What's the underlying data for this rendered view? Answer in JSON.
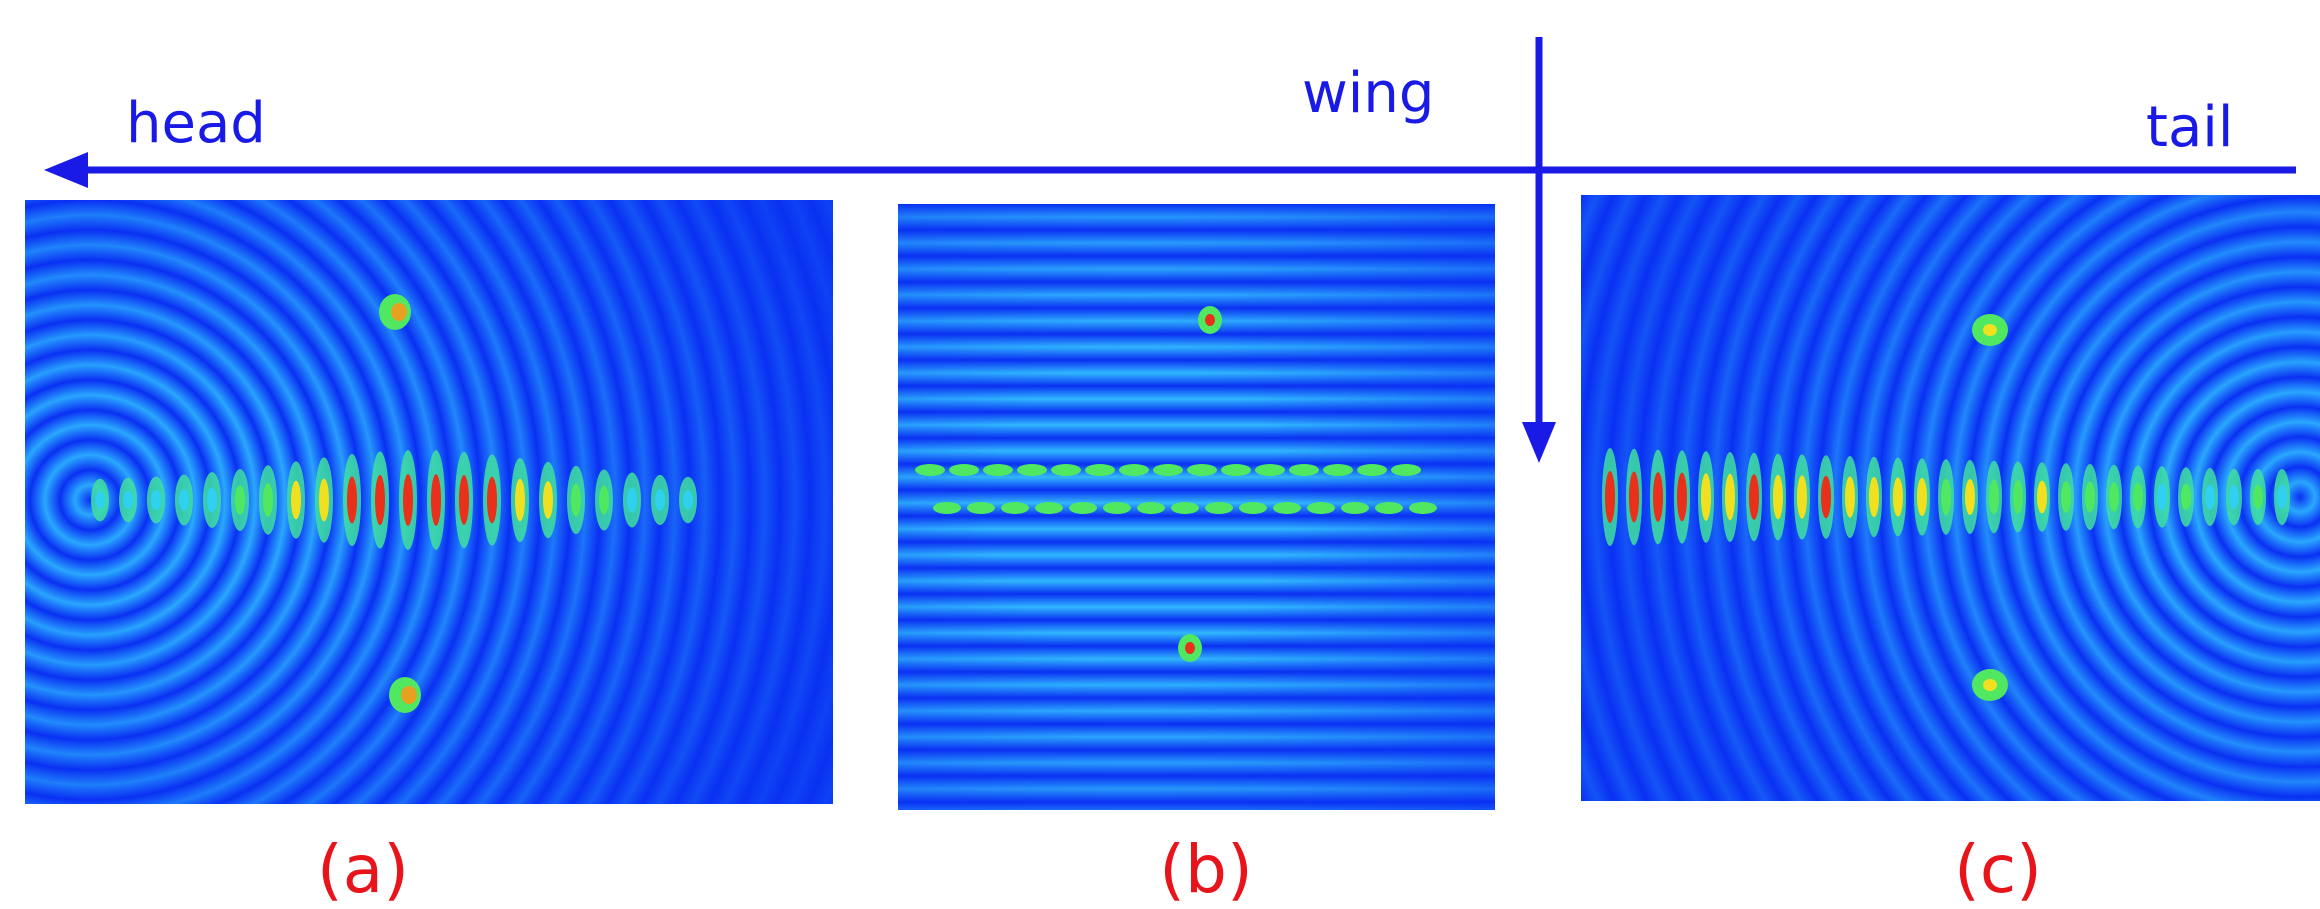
{
  "annotations": {
    "head": "head",
    "wing": "wing",
    "tail": "tail"
  },
  "panels": [
    {
      "label": "(a)"
    },
    {
      "label": "(b)"
    },
    {
      "label": "(c)"
    }
  ]
}
